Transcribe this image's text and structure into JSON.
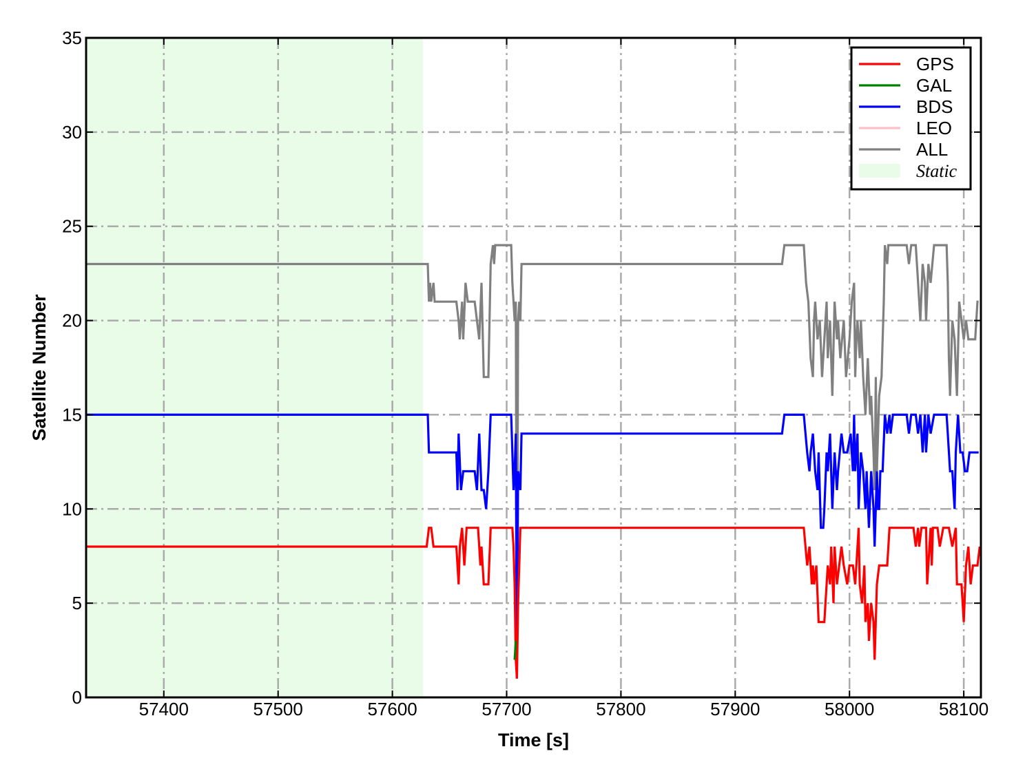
{
  "chart_data": {
    "type": "line",
    "title": "",
    "xlabel": "Time [s]",
    "ylabel": "Satellite Number",
    "xlim": [
      57332,
      58115
    ],
    "ylim": [
      0,
      35
    ],
    "xticks": [
      57400,
      57500,
      57600,
      57700,
      57800,
      57900,
      58000,
      58100
    ],
    "yticks": [
      0,
      5,
      10,
      15,
      20,
      25,
      30,
      35
    ],
    "grid": true,
    "grid_style": "dash-dot",
    "legend_position": "top-right",
    "shaded_region": {
      "name": "Static",
      "x_start": 57332,
      "x_end": 57627,
      "color": "#e8fce8"
    },
    "series": [
      {
        "name": "GPS",
        "color": "#ff0000",
        "points": [
          [
            57332,
            8
          ],
          [
            57630,
            8
          ],
          [
            57632,
            9
          ],
          [
            57634,
            9
          ],
          [
            57636,
            8
          ],
          [
            57656,
            8
          ],
          [
            57657,
            7
          ],
          [
            57658,
            6
          ],
          [
            57659,
            8
          ],
          [
            57661,
            9
          ],
          [
            57663,
            7
          ],
          [
            57665,
            9
          ],
          [
            57675,
            9
          ],
          [
            57677,
            7
          ],
          [
            57678,
            8
          ],
          [
            57680,
            6
          ],
          [
            57684,
            6
          ],
          [
            57686,
            9
          ],
          [
            57705,
            9
          ],
          [
            57706,
            8
          ],
          [
            57707,
            6
          ],
          [
            57708,
            2
          ],
          [
            57709,
            1
          ],
          [
            57710,
            5
          ],
          [
            57711,
            7
          ],
          [
            57712,
            9
          ],
          [
            57960,
            9
          ],
          [
            57963,
            7
          ],
          [
            57965,
            8
          ],
          [
            57967,
            6
          ],
          [
            57968,
            7
          ],
          [
            57969,
            6
          ],
          [
            57971,
            7
          ],
          [
            57973,
            4
          ],
          [
            57978,
            4
          ],
          [
            57980,
            6
          ],
          [
            57981,
            7
          ],
          [
            57983,
            6
          ],
          [
            57984,
            8
          ],
          [
            57986,
            5
          ],
          [
            57987,
            8
          ],
          [
            57989,
            6
          ],
          [
            57991,
            7
          ],
          [
            57993,
            8
          ],
          [
            57995,
            7
          ],
          [
            57998,
            6
          ],
          [
            58000,
            7
          ],
          [
            58003,
            7
          ],
          [
            58005,
            6
          ],
          [
            58006,
            7
          ],
          [
            58008,
            9
          ],
          [
            58009,
            6
          ],
          [
            58011,
            5
          ],
          [
            58013,
            7
          ],
          [
            58014,
            4
          ],
          [
            58016,
            5
          ],
          [
            58017,
            3
          ],
          [
            58019,
            5
          ],
          [
            58021,
            4
          ],
          [
            58022,
            2
          ],
          [
            58024,
            6
          ],
          [
            58026,
            7
          ],
          [
            58033,
            7
          ],
          [
            58035,
            9
          ],
          [
            58056,
            9
          ],
          [
            58058,
            8
          ],
          [
            58060,
            9
          ],
          [
            58061,
            8
          ],
          [
            58063,
            9
          ],
          [
            58067,
            9
          ],
          [
            58068,
            6
          ],
          [
            58070,
            8
          ],
          [
            58071,
            9
          ],
          [
            58072,
            7
          ],
          [
            58073,
            9
          ],
          [
            58077,
            9
          ],
          [
            58079,
            8
          ],
          [
            58082,
            9
          ],
          [
            58087,
            9
          ],
          [
            58090,
            8
          ],
          [
            58093,
            9
          ],
          [
            58094,
            6
          ],
          [
            58098,
            6
          ],
          [
            58099,
            5
          ],
          [
            58100,
            4
          ],
          [
            58102,
            7
          ],
          [
            58104,
            8
          ],
          [
            58106,
            6
          ],
          [
            58108,
            7
          ],
          [
            58112,
            7
          ],
          [
            58114,
            8
          ]
        ]
      },
      {
        "name": "GAL",
        "color": "#008000",
        "points": [
          [
            57707,
            2
          ],
          [
            57708,
            3
          ]
        ]
      },
      {
        "name": "BDS",
        "color": "#0000ff",
        "points": [
          [
            57332,
            15
          ],
          [
            57631,
            15
          ],
          [
            57632,
            13
          ],
          [
            57656,
            13
          ],
          [
            57657,
            11
          ],
          [
            57658,
            14
          ],
          [
            57660,
            11
          ],
          [
            57662,
            12
          ],
          [
            57672,
            12
          ],
          [
            57674,
            11
          ],
          [
            57676,
            14
          ],
          [
            57678,
            11
          ],
          [
            57680,
            11
          ],
          [
            57682,
            10
          ],
          [
            57684,
            12
          ],
          [
            57686,
            15
          ],
          [
            57704,
            15
          ],
          [
            57705,
            13
          ],
          [
            57706,
            11
          ],
          [
            57707,
            12
          ],
          [
            57708,
            14
          ],
          [
            57709,
            1
          ],
          [
            57710,
            12
          ],
          [
            57712,
            11
          ],
          [
            57713,
            14
          ],
          [
            57941,
            14
          ],
          [
            57943,
            15
          ],
          [
            57960,
            15
          ],
          [
            57963,
            13
          ],
          [
            57965,
            12
          ],
          [
            57966,
            13
          ],
          [
            57968,
            14
          ],
          [
            57970,
            12
          ],
          [
            57972,
            11
          ],
          [
            57973,
            13
          ],
          [
            57975,
            9
          ],
          [
            57977,
            9
          ],
          [
            57978,
            10
          ],
          [
            57980,
            13
          ],
          [
            57981,
            12
          ],
          [
            57983,
            14
          ],
          [
            57985,
            10
          ],
          [
            57987,
            13
          ],
          [
            57989,
            11
          ],
          [
            57990,
            12
          ],
          [
            57993,
            14
          ],
          [
            57995,
            13
          ],
          [
            57998,
            13
          ],
          [
            58001,
            14
          ],
          [
            58003,
            12
          ],
          [
            58004,
            15
          ],
          [
            58005,
            12
          ],
          [
            58007,
            14
          ],
          [
            58008,
            10
          ],
          [
            58010,
            13
          ],
          [
            58012,
            12
          ],
          [
            58014,
            10
          ],
          [
            58015,
            12
          ],
          [
            58017,
            9
          ],
          [
            58019,
            12
          ],
          [
            58021,
            10
          ],
          [
            58022,
            8
          ],
          [
            58024,
            12
          ],
          [
            58025,
            10
          ],
          [
            58026,
            10
          ],
          [
            58027,
            12
          ],
          [
            58029,
            12
          ],
          [
            58031,
            15
          ],
          [
            58033,
            14
          ],
          [
            58035,
            15
          ],
          [
            58036,
            14
          ],
          [
            58038,
            15
          ],
          [
            58050,
            15
          ],
          [
            58052,
            14
          ],
          [
            58054,
            15
          ],
          [
            58058,
            15
          ],
          [
            58060,
            14
          ],
          [
            58062,
            15
          ],
          [
            58064,
            13
          ],
          [
            58066,
            15
          ],
          [
            58067,
            13
          ],
          [
            58069,
            15
          ],
          [
            58071,
            14
          ],
          [
            58074,
            15
          ],
          [
            58085,
            15
          ],
          [
            58086,
            14
          ],
          [
            58088,
            12
          ],
          [
            58090,
            12
          ],
          [
            58092,
            10
          ],
          [
            58093,
            13
          ],
          [
            58095,
            15
          ],
          [
            58097,
            13
          ],
          [
            58099,
            13
          ],
          [
            58101,
            12
          ],
          [
            58103,
            12
          ],
          [
            58105,
            13
          ],
          [
            58112,
            13
          ],
          [
            58113,
            13
          ]
        ]
      },
      {
        "name": "LEO",
        "color": "#ffc0cb",
        "points": []
      },
      {
        "name": "ALL",
        "color": "#808080",
        "points": [
          [
            57332,
            23
          ],
          [
            57631,
            23
          ],
          [
            57632,
            21
          ],
          [
            57633,
            22
          ],
          [
            57634,
            21
          ],
          [
            57636,
            22
          ],
          [
            57637,
            21
          ],
          [
            57656,
            21
          ],
          [
            57658,
            20
          ],
          [
            57659,
            19
          ],
          [
            57661,
            21
          ],
          [
            57662,
            19
          ],
          [
            57664,
            22
          ],
          [
            57666,
            21
          ],
          [
            57672,
            21
          ],
          [
            57674,
            20
          ],
          [
            57676,
            19
          ],
          [
            57678,
            22
          ],
          [
            57680,
            17
          ],
          [
            57684,
            17
          ],
          [
            57686,
            23
          ],
          [
            57688,
            24
          ],
          [
            57689,
            23
          ],
          [
            57690,
            24
          ],
          [
            57704,
            24
          ],
          [
            57705,
            22
          ],
          [
            57706,
            21
          ],
          [
            57707,
            20
          ],
          [
            57708,
            21
          ],
          [
            57709,
            1
          ],
          [
            57710,
            20
          ],
          [
            57711,
            21
          ],
          [
            57712,
            20
          ],
          [
            57713,
            23
          ],
          [
            57941,
            23
          ],
          [
            57943,
            24
          ],
          [
            57960,
            24
          ],
          [
            57962,
            22
          ],
          [
            57964,
            21
          ],
          [
            57966,
            18
          ],
          [
            57968,
            17
          ],
          [
            57969,
            20
          ],
          [
            57970,
            21
          ],
          [
            57972,
            19
          ],
          [
            57974,
            20
          ],
          [
            57976,
            17
          ],
          [
            57978,
            19
          ],
          [
            57980,
            21
          ],
          [
            57981,
            18
          ],
          [
            57983,
            20
          ],
          [
            57985,
            16
          ],
          [
            57987,
            21
          ],
          [
            57989,
            19
          ],
          [
            57990,
            20
          ],
          [
            57992,
            18
          ],
          [
            57995,
            20
          ],
          [
            57997,
            17
          ],
          [
            58000,
            19
          ],
          [
            58002,
            21
          ],
          [
            58004,
            22
          ],
          [
            58005,
            17
          ],
          [
            58006,
            19
          ],
          [
            58007,
            20
          ],
          [
            58009,
            18
          ],
          [
            58010,
            20
          ],
          [
            58012,
            17
          ],
          [
            58014,
            15
          ],
          [
            58016,
            18
          ],
          [
            58018,
            15
          ],
          [
            58019,
            16
          ],
          [
            58021,
            13
          ],
          [
            58022,
            11
          ],
          [
            58023,
            17
          ],
          [
            58024,
            12
          ],
          [
            58026,
            16
          ],
          [
            58028,
            17
          ],
          [
            58030,
            21
          ],
          [
            58031,
            24
          ],
          [
            58033,
            23
          ],
          [
            58034,
            24
          ],
          [
            58050,
            24
          ],
          [
            58052,
            23
          ],
          [
            58054,
            24
          ],
          [
            58058,
            24
          ],
          [
            58060,
            22
          ],
          [
            58061,
            21
          ],
          [
            58062,
            20
          ],
          [
            58064,
            23
          ],
          [
            58066,
            22
          ],
          [
            58067,
            20
          ],
          [
            58069,
            23
          ],
          [
            58071,
            22
          ],
          [
            58074,
            24
          ],
          [
            58085,
            24
          ],
          [
            58086,
            22
          ],
          [
            58087,
            18
          ],
          [
            58088,
            16
          ],
          [
            58090,
            20
          ],
          [
            58092,
            19
          ],
          [
            58094,
            16
          ],
          [
            58096,
            21
          ],
          [
            58098,
            20
          ],
          [
            58100,
            19
          ],
          [
            58102,
            20
          ],
          [
            58104,
            19
          ],
          [
            58108,
            19
          ],
          [
            58110,
            19
          ],
          [
            58112,
            21
          ],
          [
            58113,
            21
          ]
        ]
      }
    ]
  }
}
